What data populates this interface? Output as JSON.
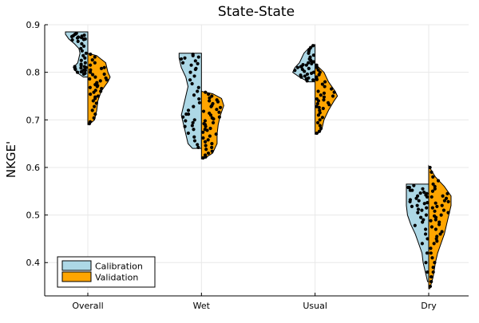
{
  "chart_data": {
    "type": "violin",
    "title": "State-State",
    "xlabel": "",
    "ylabel": "NKGE'",
    "categories": [
      "Overall",
      "Wet",
      "Usual",
      "Dry"
    ],
    "ylim": [
      0.33,
      0.9
    ],
    "yticks": [
      0.4,
      0.5,
      0.6,
      0.7,
      0.8,
      0.9
    ],
    "ytick_labels": [
      "0.4",
      "0.5",
      "0.6",
      "0.7",
      "0.8",
      "0.9"
    ],
    "grid": true,
    "legend_position": "bottom-left",
    "series": [
      {
        "name": "Calibration",
        "side": "left",
        "color": "#add8e6",
        "groups": [
          {
            "category": "Overall",
            "min": 0.79,
            "max": 0.885,
            "density": [
              [
                0.79,
                0.2
              ],
              [
                0.8,
                0.5
              ],
              [
                0.81,
                0.65
              ],
              [
                0.82,
                0.45
              ],
              [
                0.83,
                0.4
              ],
              [
                0.84,
                0.35
              ],
              [
                0.85,
                0.4
              ],
              [
                0.86,
                0.6
              ],
              [
                0.87,
                0.85
              ],
              [
                0.88,
                1.0
              ],
              [
                0.885,
                1.0
              ]
            ],
            "points": [
              0.882,
              0.88,
              0.878,
              0.876,
              0.874,
              0.872,
              0.87,
              0.868,
              0.865,
              0.86,
              0.855,
              0.85,
              0.845,
              0.84,
              0.835,
              0.83,
              0.825,
              0.82,
              0.817,
              0.814,
              0.812,
              0.81,
              0.808,
              0.806,
              0.804,
              0.802,
              0.8,
              0.798,
              0.796,
              0.88,
              0.877,
              0.873,
              0.869,
              0.812,
              0.809,
              0.805,
              0.801,
              0.797,
              0.87,
              0.875
            ]
          },
          {
            "category": "Wet",
            "min": 0.64,
            "max": 0.84,
            "density": [
              [
                0.64,
                0.4
              ],
              [
                0.65,
                0.6
              ],
              [
                0.67,
                0.7
              ],
              [
                0.69,
                0.8
              ],
              [
                0.71,
                0.9
              ],
              [
                0.73,
                0.8
              ],
              [
                0.75,
                0.7
              ],
              [
                0.77,
                0.6
              ],
              [
                0.79,
                0.7
              ],
              [
                0.81,
                0.9
              ],
              [
                0.83,
                1.0
              ],
              [
                0.84,
                1.0
              ]
            ],
            "points": [
              0.838,
              0.835,
              0.832,
              0.828,
              0.824,
              0.82,
              0.815,
              0.808,
              0.8,
              0.792,
              0.784,
              0.776,
              0.768,
              0.76,
              0.752,
              0.744,
              0.736,
              0.728,
              0.72,
              0.712,
              0.706,
              0.7,
              0.694,
              0.688,
              0.68,
              0.672,
              0.664,
              0.656,
              0.648,
              0.642,
              0.83,
              0.818,
              0.806,
              0.712,
              0.698,
              0.686
            ]
          },
          {
            "category": "Usual",
            "min": 0.78,
            "max": 0.858,
            "density": [
              [
                0.78,
                0.3
              ],
              [
                0.79,
                0.7
              ],
              [
                0.8,
                1.0
              ],
              [
                0.81,
                0.9
              ],
              [
                0.82,
                0.7
              ],
              [
                0.83,
                0.6
              ],
              [
                0.84,
                0.5
              ],
              [
                0.85,
                0.3
              ],
              [
                0.858,
                0.05
              ]
            ],
            "points": [
              0.856,
              0.852,
              0.848,
              0.844,
              0.84,
              0.836,
              0.832,
              0.828,
              0.824,
              0.82,
              0.816,
              0.812,
              0.808,
              0.804,
              0.8,
              0.796,
              0.792,
              0.788,
              0.784,
              0.782,
              0.815,
              0.81,
              0.806,
              0.802,
              0.798,
              0.794,
              0.79,
              0.826,
              0.822,
              0.818,
              0.786,
              0.812
            ]
          },
          {
            "category": "Dry",
            "min": 0.36,
            "max": 0.565,
            "density": [
              [
                0.36,
                0.05
              ],
              [
                0.38,
                0.15
              ],
              [
                0.4,
                0.25
              ],
              [
                0.42,
                0.3
              ],
              [
                0.44,
                0.45
              ],
              [
                0.46,
                0.6
              ],
              [
                0.48,
                0.8
              ],
              [
                0.5,
                0.95
              ],
              [
                0.52,
                1.0
              ],
              [
                0.54,
                1.0
              ],
              [
                0.555,
                1.0
              ],
              [
                0.565,
                1.0
              ]
            ],
            "points": [
              0.562,
              0.558,
              0.555,
              0.552,
              0.548,
              0.545,
              0.542,
              0.538,
              0.535,
              0.532,
              0.528,
              0.524,
              0.52,
              0.515,
              0.51,
              0.505,
              0.5,
              0.495,
              0.49,
              0.485,
              0.478,
              0.47,
              0.46,
              0.45,
              0.44,
              0.42,
              0.4,
              0.38,
              0.54,
              0.53,
              0.526,
              0.518,
              0.512,
              0.552,
              0.546,
              0.558
            ]
          }
        ]
      },
      {
        "name": "Validation",
        "side": "right",
        "color": "#ffa500",
        "groups": [
          {
            "category": "Overall",
            "min": 0.69,
            "max": 0.84,
            "density": [
              [
                0.69,
                0.05
              ],
              [
                0.7,
                0.3
              ],
              [
                0.72,
                0.4
              ],
              [
                0.74,
                0.45
              ],
              [
                0.76,
                0.6
              ],
              [
                0.78,
                0.9
              ],
              [
                0.79,
                1.0
              ],
              [
                0.8,
                0.9
              ],
              [
                0.82,
                0.8
              ],
              [
                0.835,
                0.4
              ],
              [
                0.84,
                0.0
              ]
            ],
            "points": [
              0.838,
              0.832,
              0.826,
              0.82,
              0.815,
              0.81,
              0.805,
              0.8,
              0.795,
              0.79,
              0.786,
              0.782,
              0.778,
              0.774,
              0.77,
              0.766,
              0.762,
              0.758,
              0.754,
              0.75,
              0.745,
              0.74,
              0.735,
              0.728,
              0.72,
              0.712,
              0.704,
              0.696,
              0.692,
              0.808,
              0.796,
              0.784,
              0.772,
              0.76,
              0.748,
              0.788,
              0.778,
              0.768
            ]
          },
          {
            "category": "Wet",
            "min": 0.618,
            "max": 0.76,
            "density": [
              [
                0.618,
                0.1
              ],
              [
                0.63,
                0.5
              ],
              [
                0.65,
                0.7
              ],
              [
                0.67,
                0.7
              ],
              [
                0.69,
                0.75
              ],
              [
                0.71,
                0.85
              ],
              [
                0.73,
                1.0
              ],
              [
                0.745,
                0.9
              ],
              [
                0.755,
                0.5
              ],
              [
                0.76,
                0.0
              ]
            ],
            "points": [
              0.758,
              0.754,
              0.75,
              0.746,
              0.742,
              0.738,
              0.734,
              0.73,
              0.726,
              0.722,
              0.718,
              0.714,
              0.71,
              0.706,
              0.702,
              0.698,
              0.694,
              0.69,
              0.686,
              0.682,
              0.678,
              0.674,
              0.67,
              0.666,
              0.662,
              0.658,
              0.654,
              0.65,
              0.646,
              0.642,
              0.638,
              0.634,
              0.63,
              0.626,
              0.622,
              0.62,
              0.74,
              0.728,
              0.716,
              0.704,
              0.692,
              0.68
            ]
          },
          {
            "category": "Usual",
            "min": 0.67,
            "max": 0.818,
            "density": [
              [
                0.67,
                0.1
              ],
              [
                0.68,
                0.3
              ],
              [
                0.7,
                0.4
              ],
              [
                0.72,
                0.6
              ],
              [
                0.74,
                0.85
              ],
              [
                0.75,
                1.0
              ],
              [
                0.76,
                0.9
              ],
              [
                0.78,
                0.6
              ],
              [
                0.8,
                0.4
              ],
              [
                0.818,
                0.0
              ]
            ],
            "points": [
              0.815,
              0.81,
              0.805,
              0.8,
              0.795,
              0.79,
              0.785,
              0.78,
              0.775,
              0.77,
              0.765,
              0.76,
              0.756,
              0.752,
              0.748,
              0.744,
              0.74,
              0.736,
              0.732,
              0.728,
              0.724,
              0.72,
              0.715,
              0.71,
              0.705,
              0.7,
              0.694,
              0.688,
              0.682,
              0.676,
              0.672,
              0.758,
              0.75,
              0.742,
              0.734,
              0.726
            ]
          },
          {
            "category": "Dry",
            "min": 0.345,
            "max": 0.603,
            "density": [
              [
                0.345,
                0.05
              ],
              [
                0.37,
                0.2
              ],
              [
                0.4,
                0.3
              ],
              [
                0.42,
                0.4
              ],
              [
                0.44,
                0.55
              ],
              [
                0.46,
                0.7
              ],
              [
                0.48,
                0.8
              ],
              [
                0.5,
                0.9
              ],
              [
                0.52,
                1.0
              ],
              [
                0.54,
                1.0
              ],
              [
                0.56,
                0.7
              ],
              [
                0.58,
                0.3
              ],
              [
                0.603,
                0.0
              ]
            ],
            "points": [
              0.6,
              0.59,
              0.58,
              0.572,
              0.565,
              0.56,
              0.555,
              0.55,
              0.545,
              0.54,
              0.535,
              0.53,
              0.525,
              0.52,
              0.515,
              0.51,
              0.505,
              0.5,
              0.495,
              0.49,
              0.485,
              0.48,
              0.475,
              0.47,
              0.465,
              0.46,
              0.455,
              0.45,
              0.445,
              0.44,
              0.43,
              0.42,
              0.41,
              0.4,
              0.39,
              0.38,
              0.37,
              0.36,
              0.35,
              0.538,
              0.528,
              0.518,
              0.508,
              0.498,
              0.488
            ]
          }
        ]
      }
    ]
  }
}
